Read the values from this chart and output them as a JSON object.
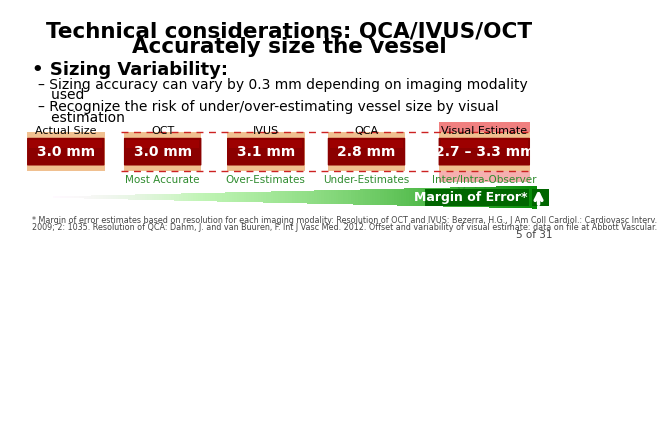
{
  "title_line1": "Technical considerations: QCA/IVUS/OCT",
  "title_line2": "Accurately size the vessel",
  "bullet_header": "• Sizing Variability:",
  "bullet1a": "– Sizing accuracy can vary by 0.3 mm depending on imaging modality",
  "bullet1b": "   used",
  "bullet2a": "– Recognize the risk of under/over-estimating vessel size by visual",
  "bullet2b": "   estimation",
  "columns": [
    "Actual Size",
    "OCT",
    "IVUS",
    "QCA",
    "Visual Estimate"
  ],
  "values": [
    "3.0 mm",
    "3.0 mm",
    "3.1 mm",
    "2.8 mm",
    "2.7 – 3.3 mm"
  ],
  "sublabels": [
    "",
    "Most Accurate",
    "Over-Estimates",
    "Under-Estimates",
    "Inter/Intra-Observer\nVariability"
  ],
  "margin_label": "Margin of Error*",
  "footnote_line1": "* Margin of error estimates based on resolution for each imaging modality: Resolution of OCT and IVUS: Bezerra, H.G., J Am Coll Cardiol.: Cardiovasc Interv.",
  "footnote_line2": "2009; 2: 1035. Resolution of QCA: Dahm, J. and van Buuren, F. Int J Vasc Med. 2012. Offset and variability of visual estimate: data on file at Abbott Vascular.",
  "page": "5 of 31",
  "bg_color": "#ffffff",
  "title_color": "#000000",
  "text_color": "#000000",
  "green_label_color": "#2e8b2e",
  "box_red_dark": "#8b0000",
  "box_red_mid": "#aa0000",
  "box_tan": "#f0c090",
  "box_pink_light": "#f5b0b0",
  "box_pink_top": "#f08080",
  "dashed_color": "#cc2222",
  "green_dark": "#006600",
  "green_mid": "#228B22"
}
